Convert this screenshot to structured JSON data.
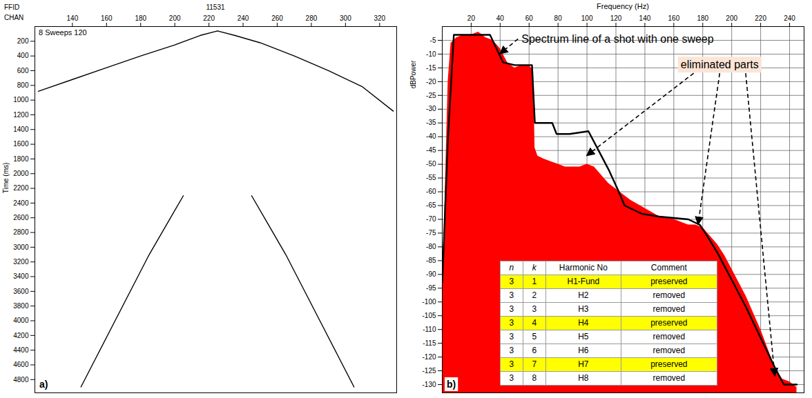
{
  "chart_data": [
    {
      "type": "line",
      "panel_label": "a)",
      "header": {
        "label": "FFID",
        "value": 11531
      },
      "x_label": "CHAN",
      "y_label": "Time (ms)",
      "annotations": [
        {
          "text": "8 Sweeps 120"
        }
      ],
      "xlim": [
        118,
        330
      ],
      "xticks": [
        140,
        160,
        180,
        200,
        220,
        240,
        260,
        280,
        300,
        320
      ],
      "ylim": [
        4980,
        0
      ],
      "yticks": [
        200,
        400,
        600,
        800,
        1000,
        1200,
        1400,
        1600,
        1800,
        2000,
        2200,
        2400,
        2600,
        2800,
        3000,
        3200,
        3400,
        3600,
        3800,
        4000,
        4200,
        4400,
        4600,
        4800
      ],
      "grid": false,
      "series": [
        {
          "color": "#000000",
          "x": [
            120,
            140,
            160,
            180,
            200,
            215,
            225
          ],
          "values": [
            880,
            720,
            560,
            400,
            250,
            120,
            60
          ]
        },
        {
          "color": "#000000",
          "x": [
            225,
            235,
            250,
            270,
            290,
            310,
            328
          ],
          "values": [
            60,
            120,
            220,
            400,
            600,
            820,
            1150
          ]
        },
        {
          "color": "#000000",
          "x": [
            205,
            195,
            185,
            175,
            165,
            155,
            145
          ],
          "values": [
            2300,
            2700,
            3100,
            3550,
            4000,
            4450,
            4900
          ]
        },
        {
          "color": "#000000",
          "x": [
            245,
            255,
            265,
            275,
            285,
            295,
            305
          ],
          "values": [
            2300,
            2700,
            3100,
            3550,
            4000,
            4450,
            4900
          ]
        }
      ]
    },
    {
      "type": "line",
      "panel_label": "b)",
      "x_label": "Frequency (Hz)",
      "y_label": "dBPower",
      "xlim": [
        0,
        250
      ],
      "xticks": [
        20,
        40,
        60,
        80,
        100,
        120,
        140,
        160,
        180,
        200,
        220,
        240
      ],
      "ylim": [
        -133,
        0
      ],
      "yticks": [
        -5,
        -10,
        -15,
        -20,
        -25,
        -30,
        -35,
        -40,
        -45,
        -50,
        -55,
        -60,
        -65,
        -70,
        -75,
        -80,
        -85,
        -90,
        -95,
        -100,
        -105,
        -110,
        -115,
        -120,
        -125,
        -130
      ],
      "grid": true,
      "series": [
        {
          "type": "area",
          "color": "#ff0000",
          "x": [
            0,
            2,
            4,
            6,
            10,
            15,
            20,
            25,
            30,
            35,
            40,
            45,
            50,
            55,
            60,
            63,
            64,
            66,
            70,
            75,
            80,
            85,
            90,
            95,
            100,
            105,
            110,
            115,
            120,
            125,
            130,
            140,
            150,
            160,
            170,
            175,
            180,
            185,
            190,
            195,
            200,
            205,
            210,
            215,
            220,
            225,
            230,
            235,
            240,
            245
          ],
          "values": [
            -95,
            -60,
            -20,
            -6,
            -4,
            -3,
            -3,
            -2,
            -4,
            -5,
            -8,
            -13,
            -15,
            -14,
            -14,
            -16,
            -44,
            -47,
            -48,
            -49,
            -50,
            -51,
            -51,
            -51,
            -50,
            -51,
            -54,
            -57,
            -59,
            -61,
            -63,
            -66,
            -69,
            -70,
            -72,
            -72,
            -73,
            -76,
            -79,
            -83,
            -88,
            -93,
            -98,
            -104,
            -110,
            -117,
            -124,
            -128,
            -129,
            -131
          ]
        },
        {
          "type": "line",
          "color": "#000000",
          "x": [
            0,
            4,
            8,
            33,
            42,
            50,
            62,
            64,
            76,
            79,
            88,
            101,
            108,
            115,
            122,
            126,
            138,
            150,
            170,
            178,
            183,
            190,
            200,
            210,
            220,
            230,
            236,
            245
          ],
          "values": [
            -93,
            -40,
            -3,
            -3,
            -13,
            -14,
            -14,
            -35,
            -35,
            -39,
            -39,
            -38,
            -45,
            -52,
            -60,
            -65,
            -68,
            -69,
            -70,
            -72,
            -76,
            -82,
            -92,
            -102,
            -113,
            -124,
            -130,
            -130
          ]
        }
      ],
      "annotations": [
        {
          "text": "Spectrum line of a shot with one sweep",
          "points": [
            [
              40,
              -10
            ]
          ]
        },
        {
          "text": "eliminated parts",
          "points": [
            [
              100,
              -47
            ],
            [
              177,
              -72
            ],
            [
              230,
              -127
            ]
          ]
        }
      ],
      "table": {
        "columns": [
          "n",
          "k",
          "Harmonic No",
          "Comment"
        ],
        "rows": [
          [
            3,
            1,
            "H1-Fund",
            "preserved"
          ],
          [
            3,
            2,
            "H2",
            "removed"
          ],
          [
            3,
            3,
            "H3",
            "removed"
          ],
          [
            3,
            4,
            "H4",
            "preserved"
          ],
          [
            3,
            5,
            "H5",
            "removed"
          ],
          [
            3,
            6,
            "H6",
            "removed"
          ],
          [
            3,
            7,
            "H7",
            "preserved"
          ],
          [
            3,
            8,
            "H8",
            "removed"
          ]
        ],
        "colors": [
          "#ffff00",
          "#ffffff",
          "#ffffff",
          "#ffff00",
          "#ffffff",
          "#ffffff",
          "#ffff00",
          "#ffffff"
        ]
      }
    }
  ]
}
